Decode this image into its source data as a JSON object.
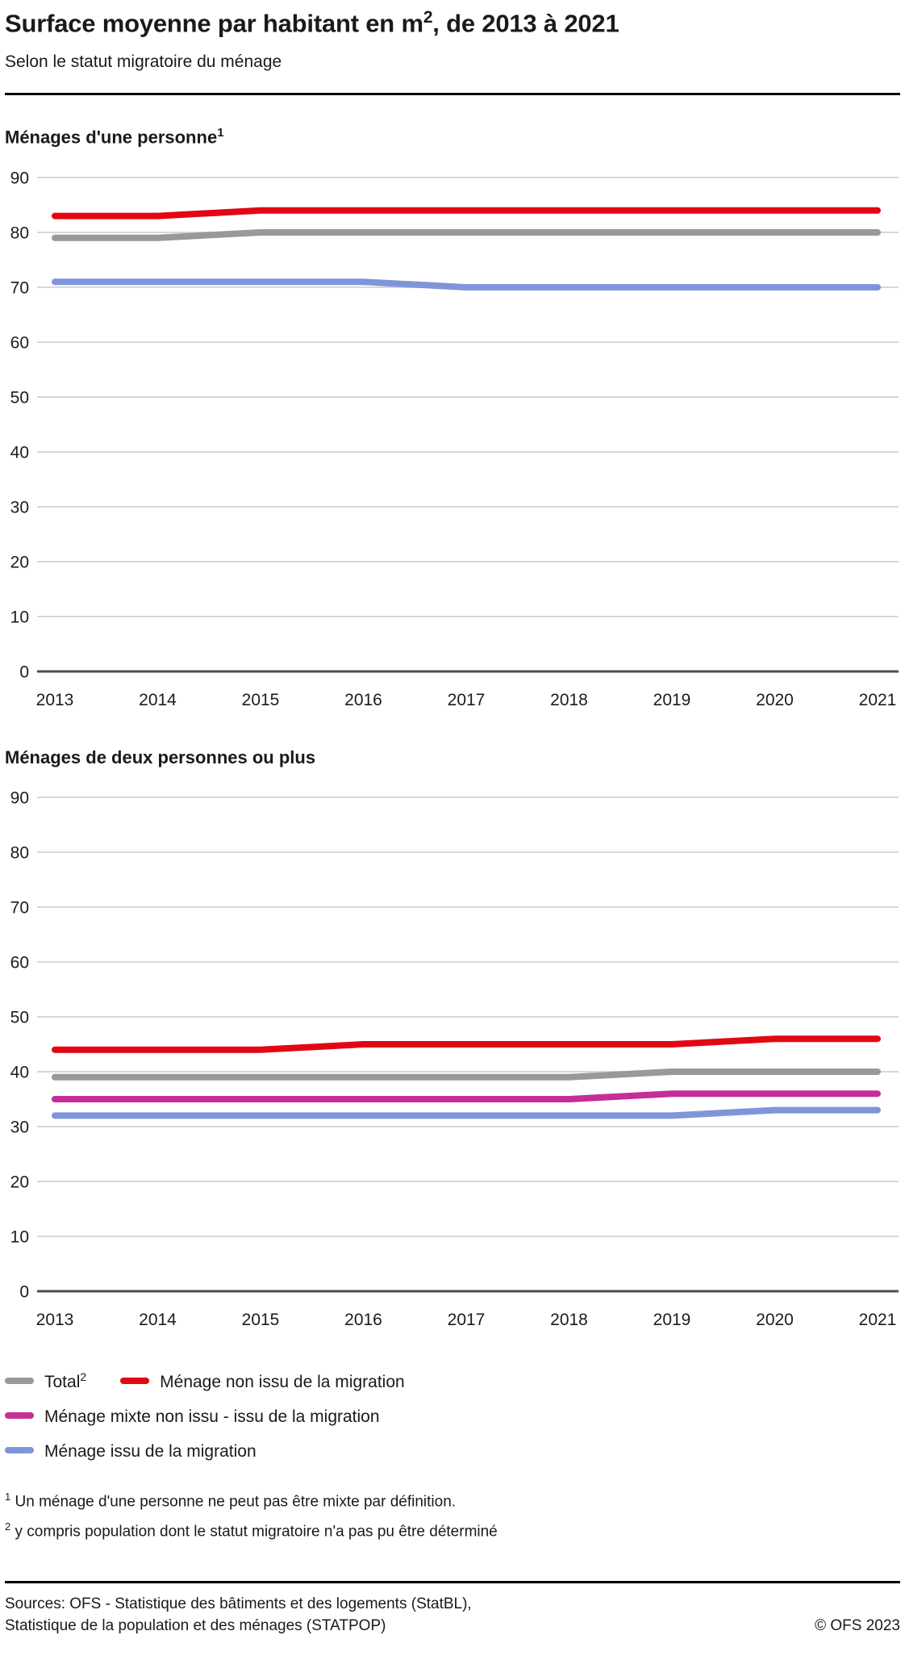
{
  "header": {
    "title_prefix": "Surface moyenne par habitant en m",
    "title_sup": "2",
    "title_suffix": ", de 2013 à 2021",
    "subtitle": "Selon le statut migratoire du ménage"
  },
  "colors": {
    "grid": "#d7d7d7",
    "zero_axis": "#4d4d4d",
    "tick_text": "#1c1c1c",
    "total_gray": "#999999",
    "non_issu_red": "#e30613",
    "mixte_magenta": "#c62d97",
    "issu_blue": "#8095d9"
  },
  "chart_data": [
    {
      "type": "line",
      "title": "Ménages d'une personne",
      "title_sup": "1",
      "x": [
        2013,
        2014,
        2015,
        2016,
        2017,
        2018,
        2019,
        2020,
        2021
      ],
      "xlabel": "",
      "ylabel": "",
      "ylim": [
        0,
        90
      ],
      "ytick_step": 10,
      "grid": true,
      "legend_position": "below-charts",
      "series": [
        {
          "name": "Total",
          "color": "#999999",
          "values": [
            79,
            79,
            80,
            80,
            80,
            80,
            80,
            80,
            80
          ]
        },
        {
          "name": "Ménage non issu de la migration",
          "color": "#e30613",
          "values": [
            83,
            83,
            84,
            84,
            84,
            84,
            84,
            84,
            84
          ]
        },
        {
          "name": "Ménage issu de la migration",
          "color": "#8095d9",
          "values": [
            71,
            71,
            71,
            71,
            70,
            70,
            70,
            70,
            70
          ]
        }
      ]
    },
    {
      "type": "line",
      "title": "Ménages de deux personnes ou plus",
      "title_sup": "",
      "x": [
        2013,
        2014,
        2015,
        2016,
        2017,
        2018,
        2019,
        2020,
        2021
      ],
      "xlabel": "",
      "ylabel": "",
      "ylim": [
        0,
        90
      ],
      "ytick_step": 10,
      "grid": true,
      "legend_position": "below-charts",
      "series": [
        {
          "name": "Ménage non issu de la migration",
          "color": "#e30613",
          "values": [
            44,
            44,
            44,
            45,
            45,
            45,
            45,
            46,
            46
          ]
        },
        {
          "name": "Total",
          "color": "#999999",
          "values": [
            39,
            39,
            39,
            39,
            39,
            39,
            40,
            40,
            40
          ]
        },
        {
          "name": "Ménage mixte non issu - issu de la migration",
          "color": "#c62d97",
          "values": [
            35,
            35,
            35,
            35,
            35,
            35,
            36,
            36,
            36
          ]
        },
        {
          "name": "Ménage issu de la migration",
          "color": "#8095d9",
          "values": [
            32,
            32,
            32,
            32,
            32,
            32,
            32,
            33,
            33
          ]
        }
      ]
    }
  ],
  "legend": {
    "items": [
      {
        "label": "Total",
        "sup": "2",
        "color": "#999999"
      },
      {
        "label": "Ménage non issu de la migration",
        "sup": "",
        "color": "#e30613"
      },
      {
        "label": "Ménage mixte non issu - issu de la migration",
        "sup": "",
        "color": "#c62d97"
      },
      {
        "label": "Ménage issu de la migration",
        "sup": "",
        "color": "#8095d9"
      }
    ]
  },
  "footnotes": [
    {
      "sup": "1",
      "text": "Un ménage d'une personne ne peut pas être mixte par définition."
    },
    {
      "sup": "2",
      "text": "y compris population dont le statut migratoire n'a pas pu être déterminé"
    }
  ],
  "footer": {
    "sources_line1": "Sources: OFS - Statistique des bâtiments et des logements (StatBL),",
    "sources_line2": "Statistique de la population et des ménages (STATPOP)",
    "copyright": "© OFS 2023"
  }
}
